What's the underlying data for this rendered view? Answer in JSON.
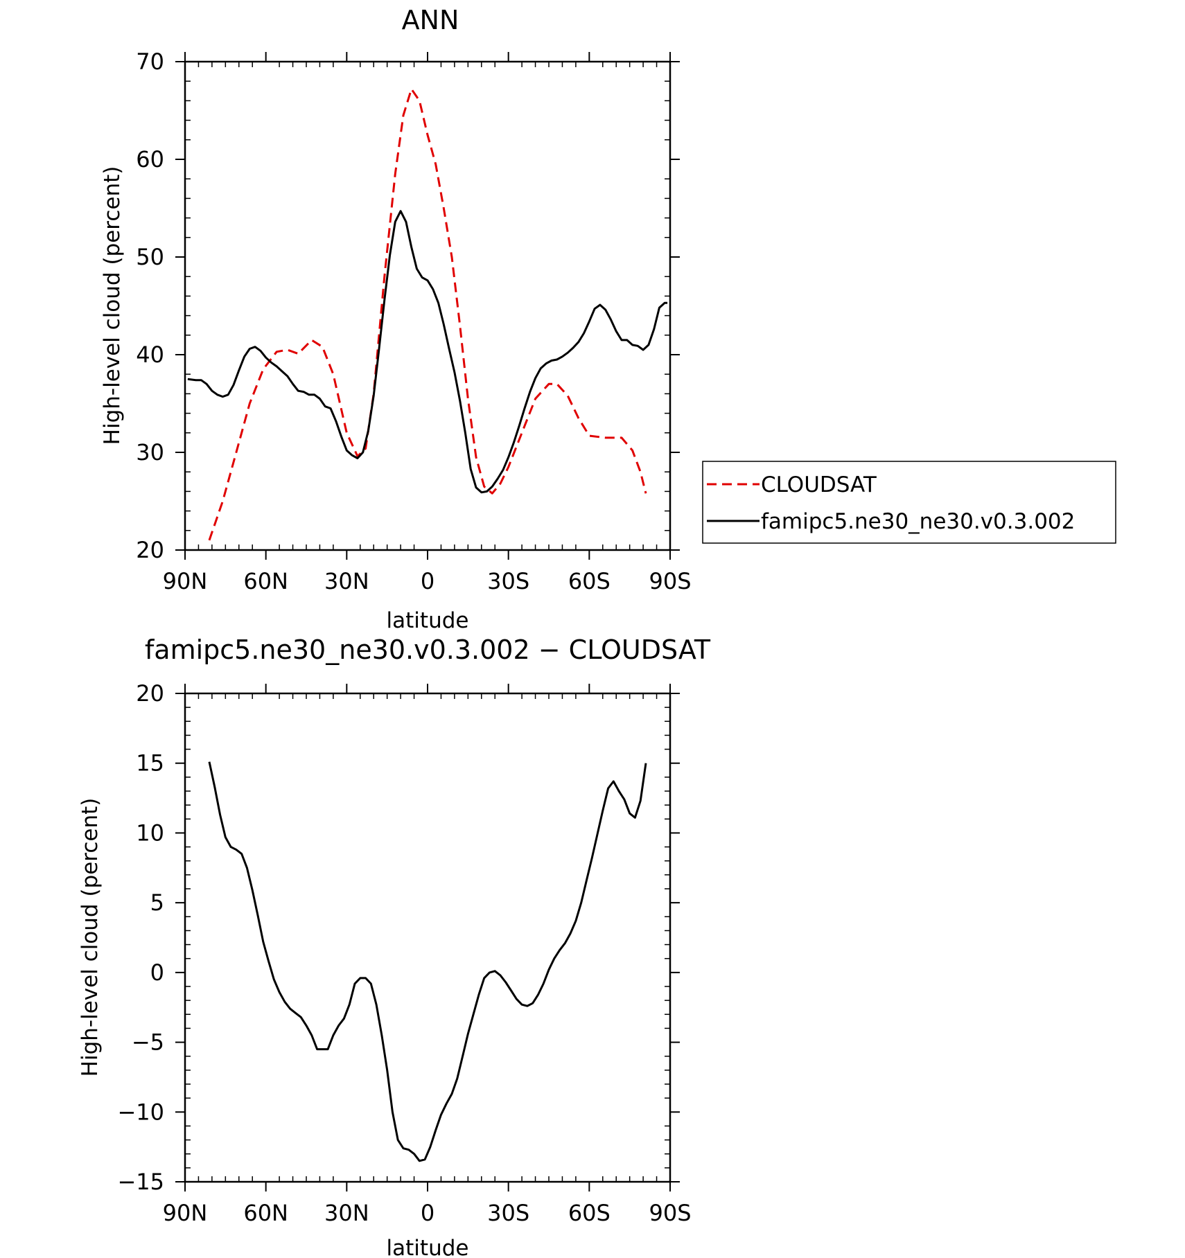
{
  "chart_data": [
    {
      "type": "line",
      "title": "ANN",
      "xlabel": "latitude",
      "ylabel": "High-level cloud (percent)",
      "xlim": [
        90,
        -90
      ],
      "ylim": [
        20,
        70
      ],
      "x_tick_values": [
        90,
        60,
        30,
        0,
        -30,
        -60,
        -90
      ],
      "x_tick_labels": [
        "90N",
        "60N",
        "30N",
        "0",
        "30S",
        "60S",
        "90S"
      ],
      "y_tick_values": [
        20,
        30,
        40,
        50,
        60,
        70
      ],
      "y_tick_labels": [
        "20",
        "30",
        "40",
        "50",
        "60",
        "70"
      ],
      "grid": false,
      "legend_placement": "right",
      "series": [
        {
          "name": "CLOUDSAT",
          "color": "#e00000",
          "dash": "dashed",
          "x": [
            81,
            76,
            71,
            66,
            61,
            56,
            52,
            48,
            43,
            39,
            35,
            30,
            26,
            23,
            20,
            16,
            12,
            9,
            6,
            3,
            0,
            -3,
            -6,
            -9,
            -12,
            -15,
            -18,
            -21,
            -24,
            -27,
            -30,
            -35,
            -40,
            -45,
            -48,
            -52,
            -56,
            -60,
            -66,
            -72,
            -76,
            -79,
            -81
          ],
          "values": [
            21,
            25,
            30,
            35,
            38.5,
            40.3,
            40.5,
            40.1,
            41.5,
            40.8,
            38.0,
            32.0,
            29.6,
            30.4,
            36.0,
            48.0,
            58.5,
            64.5,
            67.2,
            66.0,
            62.5,
            59.5,
            55.0,
            50.0,
            43.0,
            35.5,
            29.5,
            26.5,
            25.8,
            26.8,
            28.5,
            32.0,
            35.5,
            37.0,
            37.0,
            35.8,
            33.5,
            31.7,
            31.5,
            31.5,
            30.2,
            28.0,
            25.8
          ]
        },
        {
          "name": "famipc5.ne30_ne30.v0.3.002",
          "color": "#000000",
          "dash": "solid",
          "x": [
            89,
            86,
            84,
            82,
            80,
            78,
            76,
            74,
            72,
            70,
            68,
            66,
            64,
            62,
            60,
            58,
            56,
            54,
            52,
            50,
            48,
            46,
            44,
            42,
            40,
            38,
            36,
            34,
            32,
            30,
            28,
            26,
            24,
            22,
            20,
            18,
            16,
            14,
            12,
            10,
            8,
            6,
            4,
            2,
            0,
            -2,
            -4,
            -6,
            -8,
            -10,
            -12,
            -14,
            -16,
            -18,
            -20,
            -22,
            -24,
            -26,
            -28,
            -30,
            -32,
            -34,
            -36,
            -38,
            -40,
            -42,
            -44,
            -46,
            -48,
            -50,
            -52,
            -54,
            -56,
            -58,
            -60,
            -62,
            -64,
            -66,
            -68,
            -70,
            -72,
            -74,
            -76,
            -78,
            -80,
            -82,
            -84,
            -86,
            -88,
            -89
          ],
          "values": [
            37.5,
            37.4,
            37.4,
            37.0,
            36.3,
            35.9,
            35.7,
            35.9,
            36.9,
            38.4,
            39.8,
            40.6,
            40.8,
            40.4,
            39.7,
            39.2,
            38.8,
            38.3,
            37.8,
            37.0,
            36.3,
            36.2,
            35.9,
            35.9,
            35.5,
            34.7,
            34.5,
            33.2,
            31.6,
            30.2,
            29.7,
            29.4,
            30.0,
            32.2,
            35.8,
            40.6,
            45.6,
            50.2,
            53.6,
            54.7,
            53.6,
            51.0,
            48.8,
            47.9,
            47.6,
            46.7,
            45.3,
            43.1,
            40.6,
            38.2,
            35.3,
            32.0,
            28.3,
            26.4,
            25.9,
            26.0,
            26.5,
            27.3,
            28.2,
            29.5,
            31.0,
            32.7,
            34.5,
            36.2,
            37.6,
            38.6,
            39.1,
            39.4,
            39.5,
            39.8,
            40.2,
            40.7,
            41.3,
            42.2,
            43.4,
            44.7,
            45.1,
            44.6,
            43.6,
            42.4,
            41.5,
            41.5,
            41.0,
            40.9,
            40.5,
            41.0,
            42.6,
            44.8,
            45.3,
            45.3
          ]
        }
      ]
    },
    {
      "type": "line",
      "title": "famipc5.ne30_ne30.v0.3.002 − CLOUDSAT",
      "xlabel": "latitude",
      "ylabel": "High-level cloud (percent)",
      "xlim": [
        90,
        -90
      ],
      "ylim": [
        -15,
        20
      ],
      "x_tick_values": [
        90,
        60,
        30,
        0,
        -30,
        -60,
        -90
      ],
      "x_tick_labels": [
        "90N",
        "60N",
        "30N",
        "0",
        "30S",
        "60S",
        "90S"
      ],
      "y_tick_values": [
        -15,
        -10,
        -5,
        0,
        5,
        10,
        15,
        20
      ],
      "y_tick_labels": [
        "−15",
        "−10",
        "−5",
        "0",
        "5",
        "10",
        "15",
        "20"
      ],
      "grid": false,
      "series": [
        {
          "color": "#000000",
          "dash": "solid",
          "x": [
            81,
            79,
            77,
            75,
            73,
            71,
            69,
            67,
            65,
            63,
            61,
            59,
            57,
            55,
            53,
            51,
            49,
            47,
            45,
            43,
            41,
            39,
            37,
            35,
            33,
            31,
            29,
            27,
            25,
            23,
            21,
            19,
            17,
            15,
            13,
            11,
            9,
            7,
            5,
            3,
            1,
            -1,
            -3,
            -5,
            -7,
            -9,
            -11,
            -13,
            -15,
            -17,
            -19,
            -21,
            -23,
            -25,
            -27,
            -29,
            -31,
            -33,
            -35,
            -37,
            -39,
            -41,
            -43,
            -45,
            -47,
            -49,
            -51,
            -53,
            -55,
            -57,
            -59,
            -61,
            -63,
            -65,
            -67,
            -69,
            -71,
            -73,
            -75,
            -77,
            -79,
            -81
          ],
          "values": [
            15.1,
            13.3,
            11.3,
            9.7,
            9.0,
            8.8,
            8.5,
            7.5,
            5.9,
            4.1,
            2.2,
            0.8,
            -0.5,
            -1.4,
            -2.1,
            -2.6,
            -2.9,
            -3.2,
            -3.8,
            -4.5,
            -5.5,
            -5.5,
            -5.5,
            -4.5,
            -3.8,
            -3.3,
            -2.3,
            -0.8,
            -0.4,
            -0.4,
            -0.8,
            -2.3,
            -4.5,
            -7.0,
            -10.0,
            -12.0,
            -12.6,
            -12.7,
            -13.0,
            -13.5,
            -13.4,
            -12.5,
            -11.3,
            -10.2,
            -9.4,
            -8.7,
            -7.6,
            -6.0,
            -4.4,
            -3.0,
            -1.6,
            -0.4,
            0.0,
            0.1,
            -0.2,
            -0.7,
            -1.3,
            -1.9,
            -2.3,
            -2.4,
            -2.2,
            -1.6,
            -0.8,
            0.2,
            1.0,
            1.6,
            2.1,
            2.8,
            3.7,
            5.0,
            6.6,
            8.2,
            9.9,
            11.6,
            13.2,
            13.7,
            13.0,
            12.4,
            11.4,
            11.1,
            12.3,
            15.0
          ]
        }
      ]
    }
  ]
}
